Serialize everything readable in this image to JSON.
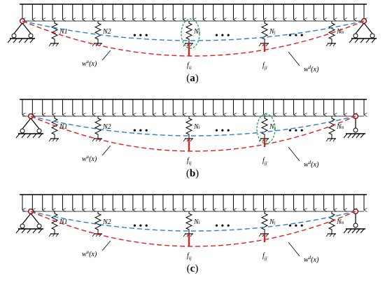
{
  "panels": [
    {
      "caption": "a",
      "springs": [
        "N1",
        "N2",
        "Ni",
        "Nj",
        "Nn"
      ],
      "dots": "• • •",
      "force_i": "f_ii",
      "force_j": "f_ji",
      "curve_upper": "w^u(x)",
      "curve_lower": "w^d(x)",
      "highlight": "Ni"
    },
    {
      "caption": "b",
      "springs": [
        "N1",
        "N2",
        "Ni",
        "Nj",
        "Nn"
      ],
      "dots": "• • •",
      "force_i": "f_ij",
      "force_j": "f_jj",
      "curve_upper": "w^u(x)",
      "curve_lower": "w^d(x)",
      "highlight": "Nj"
    },
    {
      "caption": "c",
      "springs": [
        "N1",
        "N2",
        "Ni",
        "Nj",
        "Nn"
      ],
      "dots": "• • •",
      "force_i": "f_ij",
      "force_j": "f_jj",
      "curve_upper": "w^u(x)",
      "curve_lower": "w^d(x)",
      "highlight": ""
    }
  ],
  "colors": {
    "upper_curve": "#2a7fd4",
    "lower_curve": "#e02020",
    "highlight": "#1aa84a",
    "force": "#e02020",
    "structure": "#000000"
  }
}
